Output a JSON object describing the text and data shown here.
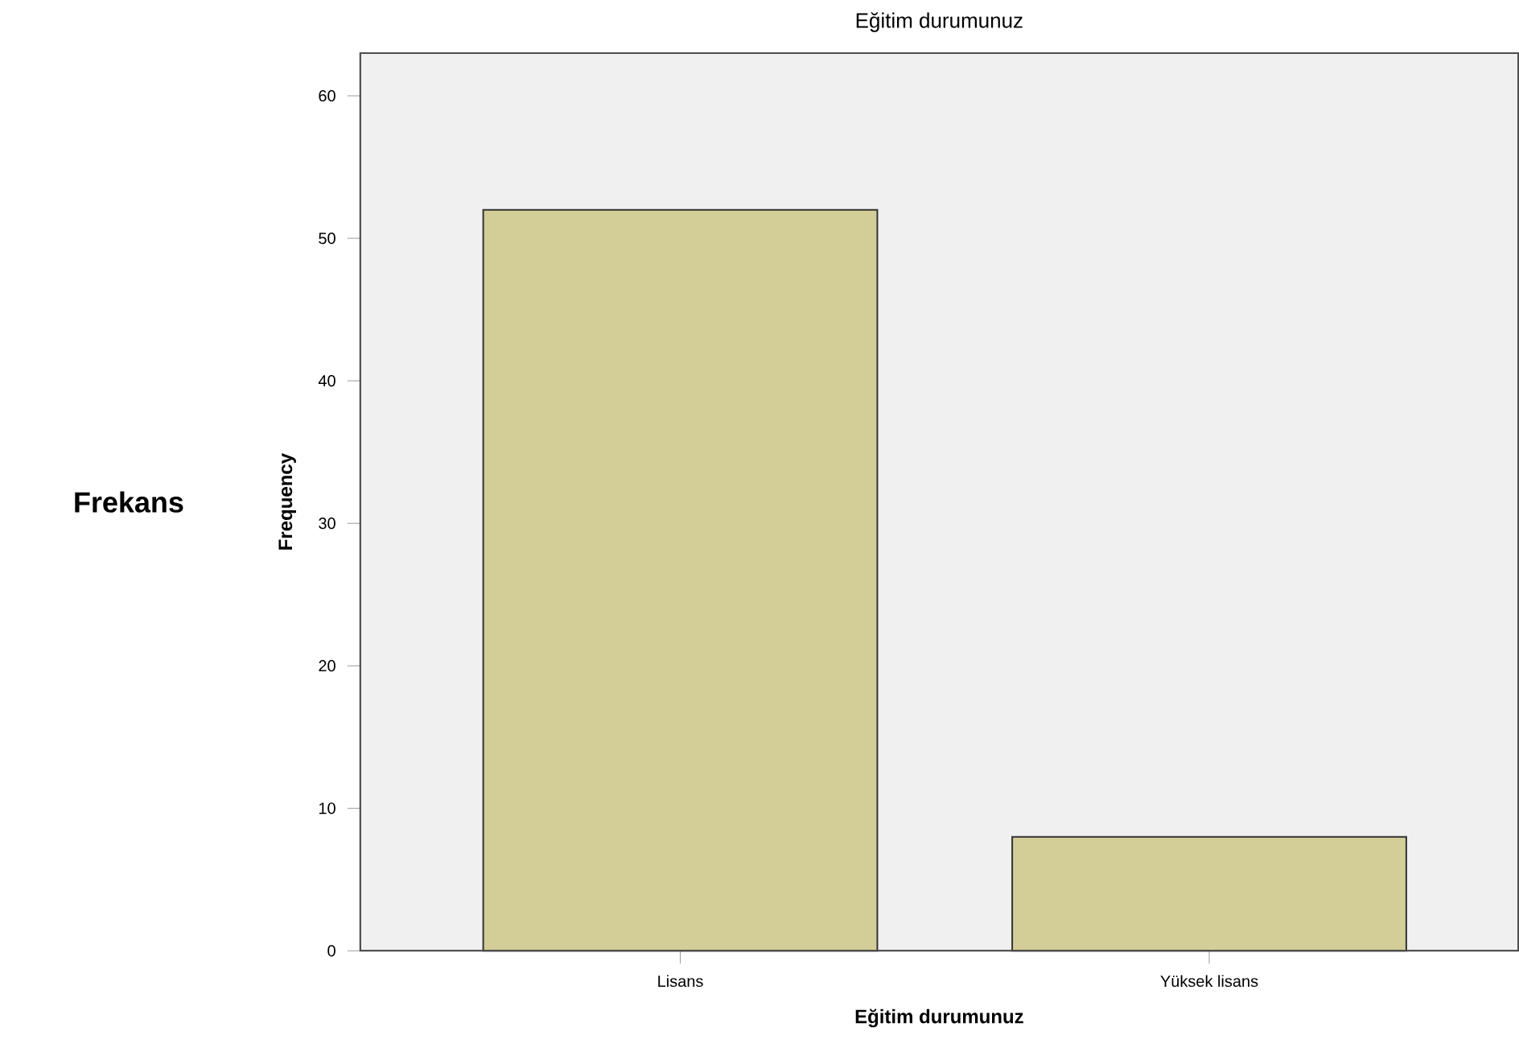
{
  "chart_data": {
    "type": "bar",
    "title": "Eğitim durumunuz",
    "xlabel": "Eğitim durumunuz",
    "ylabel": "Frequency",
    "annotations": [
      "Frekans"
    ],
    "categories": [
      "Lisans",
      "Yüksek lisans"
    ],
    "values": [
      52,
      8
    ],
    "color": "#d3ce97",
    "ylim": [
      0,
      63
    ],
    "yticks": [
      0,
      10,
      20,
      30,
      40,
      50,
      60
    ],
    "grid": false
  }
}
